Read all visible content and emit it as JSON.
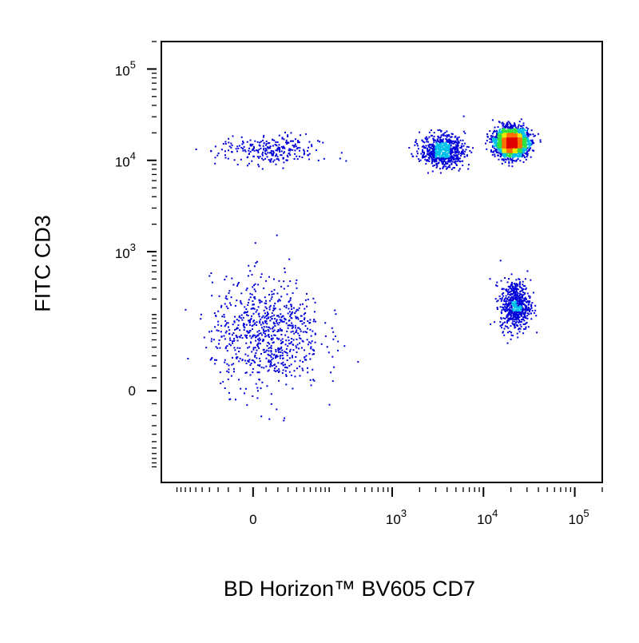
{
  "chart_data": {
    "type": "scatter",
    "style": "flow-cytometry pseudocolor density dot plot",
    "xlabel": "BD Horizon™ BV605  CD7",
    "ylabel": "FITC  CD3",
    "x_scale": "biexponential",
    "y_scale": "biexponential",
    "x_ticks": [
      {
        "value": 0,
        "base": "0",
        "exp": ""
      },
      {
        "value": 1000,
        "base": "10",
        "exp": "3"
      },
      {
        "value": 10000,
        "base": "10",
        "exp": "4"
      },
      {
        "value": 100000,
        "base": "10",
        "exp": "5"
      }
    ],
    "y_ticks": [
      {
        "value": 0,
        "base": "0",
        "exp": ""
      },
      {
        "value": 1000,
        "base": "10",
        "exp": "3"
      },
      {
        "value": 10000,
        "base": "10",
        "exp": "4"
      },
      {
        "value": 100000,
        "base": "10",
        "exp": "5"
      }
    ],
    "xlim": [
      -300,
      200000
    ],
    "ylim": [
      -300,
      200000
    ],
    "grid": false,
    "legend": "none",
    "density_colors": [
      "#0000d8",
      "#00c0e8",
      "#30e040",
      "#e8e800",
      "#ff7000",
      "#e00000"
    ],
    "populations": [
      {
        "name_hidden": true,
        "x_center": 20000,
        "y_center": 16000,
        "x_spread": 0.16,
        "y_spread": 0.14,
        "n": 2300
      },
      {
        "name_hidden": true,
        "x_center": 3500,
        "y_center": 13000,
        "x_spread": 0.22,
        "y_spread": 0.16,
        "n": 700
      },
      {
        "name_hidden": true,
        "x_center": 25,
        "y_center": 13000,
        "x_spread": 0.5,
        "y_spread": 0.15,
        "n": 260
      },
      {
        "name_hidden": true,
        "x_center": 22000,
        "y_center": 260,
        "x_spread": 0.15,
        "y_spread": 0.25,
        "n": 600
      },
      {
        "name_hidden": true,
        "x_center": 20,
        "y_center": 120,
        "x_spread": 0.55,
        "y_spread": 0.55,
        "n": 800
      }
    ]
  }
}
